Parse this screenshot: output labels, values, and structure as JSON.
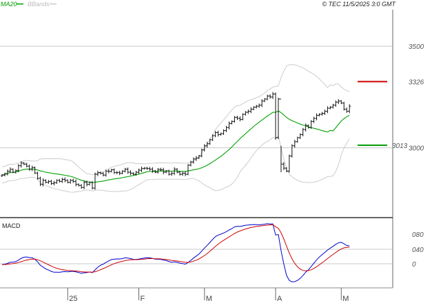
{
  "header": {
    "legend_ma": "MA20",
    "legend_bb": "BBands",
    "copyright": "© TEC 11/5/2025 3:0 GMT"
  },
  "colors": {
    "ma": "#00a000",
    "bbands": "#cccccc",
    "bars": "#111111",
    "resistance": "#cc0000",
    "support": "#009900",
    "macd": "#0000cc",
    "signal": "#cc0000",
    "grid": "#c8c8c8"
  },
  "macd_panel": {
    "label": "MACD",
    "ticks": [
      {
        "label": "080",
        "value": 80
      },
      {
        "label": "040",
        "value": 40
      },
      {
        "label": "0",
        "value": 0
      }
    ]
  },
  "chart_data": {
    "type": "ohlc",
    "x_labels": [
      {
        "label": "25",
        "index": 24
      },
      {
        "label": "F",
        "index": 50
      },
      {
        "label": "M",
        "index": 74
      },
      {
        "label": "A",
        "index": 100
      },
      {
        "label": "M",
        "index": 124
      }
    ],
    "y_ticks": [
      {
        "label": "3500",
        "value": 3500
      },
      {
        "label": "3000",
        "value": 3000
      }
    ],
    "ylim": [
      2660,
      3680
    ],
    "levels": [
      {
        "label": "3326",
        "value": 3326,
        "role": "resistance"
      },
      {
        "label": "3013",
        "value": 3013,
        "role": "support"
      }
    ],
    "closes": [
      2866,
      2872,
      2885,
      2894,
      2880,
      2888,
      2912,
      2925,
      2920,
      2910,
      2895,
      2903,
      2876,
      2850,
      2820,
      2840,
      2830,
      2835,
      2825,
      2828,
      2840,
      2835,
      2845,
      2840,
      2830,
      2840,
      2835,
      2820,
      2815,
      2805,
      2830,
      2820,
      2830,
      2802,
      2870,
      2878,
      2874,
      2866,
      2885,
      2884,
      2892,
      2878,
      2878,
      2875,
      2885,
      2895,
      2880,
      2875,
      2870,
      2880,
      2890,
      2898,
      2900,
      2898,
      2895,
      2886,
      2880,
      2894,
      2892,
      2880,
      2886,
      2870,
      2875,
      2895,
      2880,
      2870,
      2875,
      2870,
      2915,
      2930,
      2945,
      2950,
      2960,
      2990,
      3010,
      3020,
      3040,
      3060,
      3075,
      3065,
      3070,
      3085,
      3100,
      3120,
      3130,
      3150,
      3145,
      3140,
      3165,
      3175,
      3180,
      3190,
      3200,
      3205,
      3210,
      3230,
      3240,
      3255,
      3250,
      3265,
      3050,
      3240,
      2920,
      2900,
      2885,
      2960,
      3010,
      3030,
      3050,
      3065,
      3090,
      3110,
      3100,
      3130,
      3145,
      3160,
      3165,
      3170,
      3180,
      3195,
      3200,
      3210,
      3225,
      3230,
      3220,
      3190,
      3180,
      3205
    ]
  }
}
